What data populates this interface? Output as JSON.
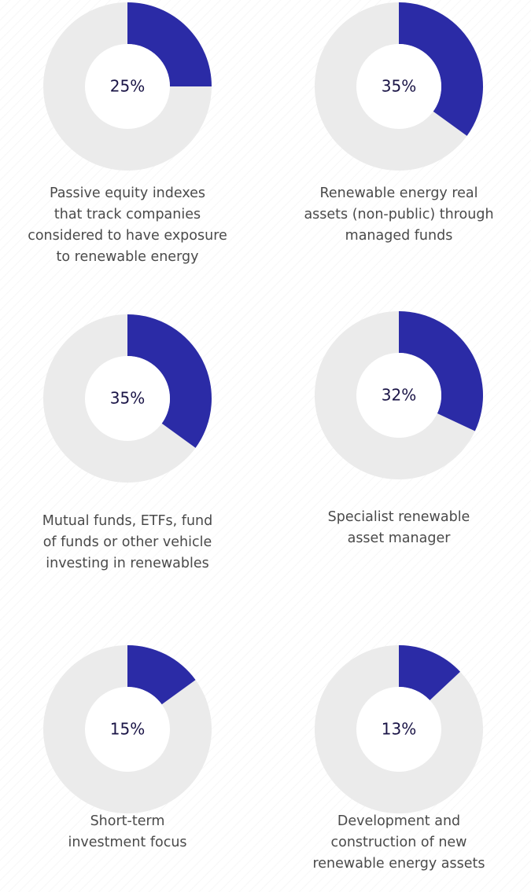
{
  "chart_data": [
    {
      "type": "pie",
      "values": [
        25
      ],
      "value_labels": [
        "25%"
      ],
      "color": "#2b2ba6",
      "caption": [
        "Passive equity indexes",
        "that track companies",
        "considered to have exposure",
        "to renewable energy"
      ]
    },
    {
      "type": "pie",
      "values": [
        35
      ],
      "value_labels": [
        "35%"
      ],
      "color": "#2b2ba6",
      "caption": [
        "Renewable energy real",
        "assets (non-public) through",
        "managed funds"
      ]
    },
    {
      "type": "pie",
      "values": [
        35
      ],
      "value_labels": [
        "35%"
      ],
      "color": "#2b2ba6",
      "caption": [
        "Mutual funds, ETFs, fund",
        "of funds or other vehicle",
        "investing in renewables"
      ]
    },
    {
      "type": "pie",
      "values": [
        32
      ],
      "value_labels": [
        "32%"
      ],
      "color": "#2b2ba6",
      "caption": [
        "Specialist renewable",
        "asset manager"
      ]
    },
    {
      "type": "pie",
      "values": [
        15
      ],
      "value_labels": [
        "15%"
      ],
      "color": "#2b2ba6",
      "caption": [
        "Short-term",
        "investment focus"
      ]
    },
    {
      "type": "pie",
      "values": [
        13
      ],
      "value_labels": [
        "13%"
      ],
      "color": "#2b2ba6",
      "caption": [
        "Development and",
        "construction of new",
        "renewable energy assets"
      ]
    }
  ]
}
